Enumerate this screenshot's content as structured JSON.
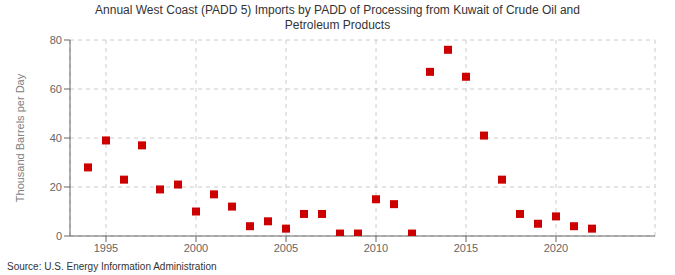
{
  "chart_data": {
    "type": "scatter",
    "title": "Annual West Coast (PADD 5) Imports by PADD of Processing from Kuwait of Crude Oil and\nPetroleum Products",
    "y_label": "Thousand Barrels per Day",
    "annotations": [
      "Source: U.S. Energy Information Administration"
    ],
    "x": [
      1994,
      1995,
      1996,
      1997,
      1998,
      1999,
      2000,
      2001,
      2002,
      2003,
      2004,
      2005,
      2006,
      2007,
      2008,
      2009,
      2010,
      2011,
      2012,
      2013,
      2014,
      2015,
      2016,
      2017,
      2018,
      2019,
      2020,
      2021,
      2022,
      2023,
      2024
    ],
    "values": [
      28,
      39,
      23,
      37,
      19,
      21,
      10,
      17,
      12,
      4,
      6,
      3,
      9,
      9,
      1,
      1,
      15,
      13,
      1,
      67,
      76,
      65,
      41,
      23,
      9,
      5,
      8,
      4,
      3,
      null,
      null
    ],
    "color": "#cc0000",
    "marker": "square",
    "xlim": [
      1993.0,
      2025.5
    ],
    "ylim": [
      0,
      80
    ],
    "xticks": [
      1995,
      2000,
      2005,
      2010,
      2015,
      2020
    ],
    "yticks": [
      0,
      20,
      40,
      60,
      80
    ],
    "grid": true
  }
}
